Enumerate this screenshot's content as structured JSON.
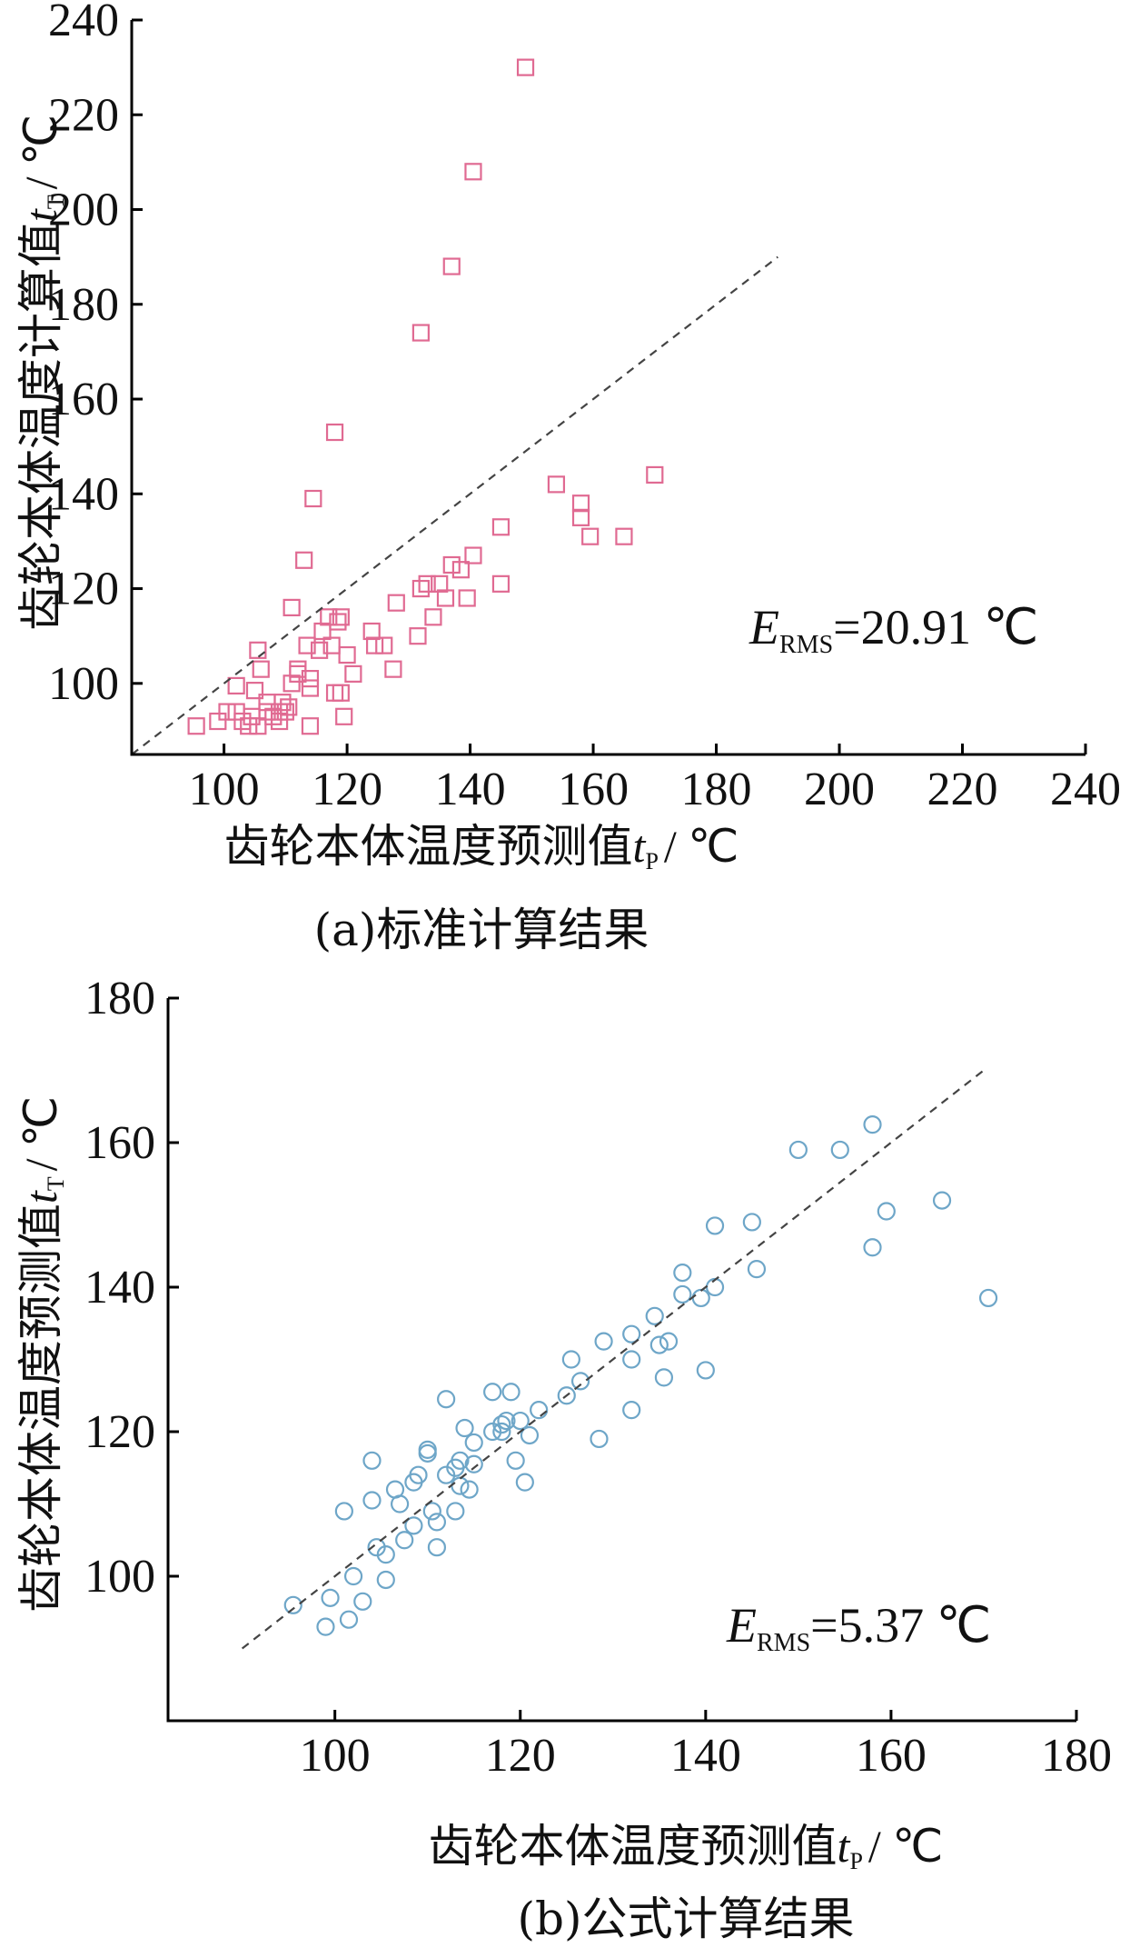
{
  "chart_data": [
    {
      "type": "scatter",
      "panel": "a",
      "caption": "(a)标准计算结果",
      "xlabel_main": "齿轮本体温度预测值",
      "xlabel_sym": "t",
      "xlabel_sub": "P",
      "xlabel_unit": "/ ℃",
      "ylabel_main": "齿轮本体温度计算值",
      "ylabel_sym": "t",
      "ylabel_sub": "T",
      "ylabel_unit": "/ ℃",
      "xlim": [
        85,
        240
      ],
      "ylim": [
        85,
        240
      ],
      "xticks": [
        "100",
        "120",
        "140",
        "160",
        "180",
        "200",
        "220",
        "240"
      ],
      "yticks": [
        "100",
        "120",
        "140",
        "160",
        "180",
        "200",
        "220",
        "240"
      ],
      "reference_line": [
        [
          85,
          85
        ],
        [
          190,
          190
        ]
      ],
      "annotation": {
        "sym": "E",
        "sub": "RMS",
        "value": "=20.91 ℃"
      },
      "marker": "square",
      "color": "#e06a92",
      "points": [
        [
          95.5,
          91
        ],
        [
          99,
          92
        ],
        [
          100.5,
          94
        ],
        [
          102,
          94
        ],
        [
          102,
          99.5
        ],
        [
          103,
          92
        ],
        [
          104,
          91
        ],
        [
          104.5,
          93
        ],
        [
          105,
          98.5
        ],
        [
          105.5,
          91
        ],
        [
          105.5,
          107
        ],
        [
          106,
          103
        ],
        [
          107,
          96
        ],
        [
          107,
          94
        ],
        [
          108,
          93
        ],
        [
          109,
          94
        ],
        [
          109,
          92
        ],
        [
          109.5,
          96
        ],
        [
          110,
          94
        ],
        [
          110.5,
          95
        ],
        [
          111,
          100
        ],
        [
          111,
          116
        ],
        [
          112,
          102
        ],
        [
          112,
          103
        ],
        [
          113,
          126
        ],
        [
          113.5,
          108
        ],
        [
          114,
          101
        ],
        [
          114,
          99
        ],
        [
          114,
          91
        ],
        [
          114.5,
          139
        ],
        [
          115.5,
          107
        ],
        [
          116,
          111
        ],
        [
          117,
          114
        ],
        [
          117.5,
          108
        ],
        [
          118,
          153
        ],
        [
          118.5,
          113
        ],
        [
          118,
          98
        ],
        [
          119,
          98
        ],
        [
          119,
          114
        ],
        [
          119.5,
          93
        ],
        [
          120,
          106
        ],
        [
          121,
          102
        ],
        [
          124,
          111
        ],
        [
          124.5,
          108
        ],
        [
          126,
          108
        ],
        [
          127.5,
          103
        ],
        [
          128,
          117
        ],
        [
          131.5,
          110
        ],
        [
          132,
          120
        ],
        [
          132,
          174
        ],
        [
          133,
          121
        ],
        [
          134,
          114
        ],
        [
          135,
          121
        ],
        [
          136,
          118
        ],
        [
          137,
          188
        ],
        [
          137,
          125
        ],
        [
          138.5,
          124
        ],
        [
          139.5,
          118
        ],
        [
          140.5,
          127
        ],
        [
          140.5,
          208
        ],
        [
          145,
          121
        ],
        [
          145,
          133
        ],
        [
          149,
          230
        ],
        [
          154,
          142
        ],
        [
          158,
          135
        ],
        [
          158,
          138
        ],
        [
          159.5,
          131
        ],
        [
          165,
          131
        ],
        [
          170,
          144
        ]
      ]
    },
    {
      "type": "scatter",
      "panel": "b",
      "caption": "(b)公式计算结果",
      "xlabel_main": "齿轮本体温度预测值",
      "xlabel_sym": "t",
      "xlabel_sub": "P",
      "xlabel_unit": "/ ℃",
      "ylabel_main": "齿轮本体温度预测值",
      "ylabel_sym": "t",
      "ylabel_sub": "T",
      "ylabel_unit": "/ ℃",
      "xlim": [
        82,
        180
      ],
      "ylim": [
        80,
        180
      ],
      "xticks": [
        "100",
        "120",
        "140",
        "160",
        "180"
      ],
      "yticks": [
        "100",
        "120",
        "140",
        "160",
        "180"
      ],
      "reference_line": [
        [
          90,
          90
        ],
        [
          170,
          170
        ]
      ],
      "annotation": {
        "sym": "E",
        "sub": "RMS",
        "value": "=5.37 ℃"
      },
      "marker": "circle",
      "color": "#6ea6c8",
      "points": [
        [
          95.5,
          96
        ],
        [
          99,
          93
        ],
        [
          99.5,
          97
        ],
        [
          101,
          109
        ],
        [
          101.5,
          94
        ],
        [
          102,
          100
        ],
        [
          103,
          96.5
        ],
        [
          104,
          110.5
        ],
        [
          104,
          116
        ],
        [
          104.5,
          104
        ],
        [
          105.5,
          99.5
        ],
        [
          105.5,
          103
        ],
        [
          106.5,
          112
        ],
        [
          107,
          110
        ],
        [
          107.5,
          105
        ],
        [
          108.5,
          107
        ],
        [
          108.5,
          113
        ],
        [
          109,
          114
        ],
        [
          110,
          117
        ],
        [
          110,
          117.5
        ],
        [
          110.5,
          109
        ],
        [
          111,
          104
        ],
        [
          111,
          107.5
        ],
        [
          112,
          114
        ],
        [
          112,
          124.5
        ],
        [
          113,
          115
        ],
        [
          113,
          109
        ],
        [
          113.5,
          112.5
        ],
        [
          113.5,
          116
        ],
        [
          114,
          120.5
        ],
        [
          114.5,
          112
        ],
        [
          115,
          115.5
        ],
        [
          115,
          118.5
        ],
        [
          117,
          120
        ],
        [
          117,
          125.5
        ],
        [
          118,
          121
        ],
        [
          118,
          120
        ],
        [
          118.5,
          121.5
        ],
        [
          119,
          125.5
        ],
        [
          119.5,
          116
        ],
        [
          120,
          121.5
        ],
        [
          120.5,
          113
        ],
        [
          121,
          119.5
        ],
        [
          122,
          123
        ],
        [
          125,
          125
        ],
        [
          125.5,
          130
        ],
        [
          126.5,
          127
        ],
        [
          128.5,
          119
        ],
        [
          129,
          132.5
        ],
        [
          132,
          133.5
        ],
        [
          132,
          130
        ],
        [
          132,
          123
        ],
        [
          134.5,
          136
        ],
        [
          135,
          132
        ],
        [
          135.5,
          127.5
        ],
        [
          136,
          132.5
        ],
        [
          137.5,
          139
        ],
        [
          137.5,
          142
        ],
        [
          139.5,
          138.5
        ],
        [
          140,
          128.5
        ],
        [
          141,
          140
        ],
        [
          141,
          148.5
        ],
        [
          145,
          149
        ],
        [
          145.5,
          142.5
        ],
        [
          150,
          159
        ],
        [
          154.5,
          159
        ],
        [
          158,
          145.5
        ],
        [
          158,
          162.5
        ],
        [
          159.5,
          150.5
        ],
        [
          165.5,
          152
        ],
        [
          170.5,
          138.5
        ]
      ]
    }
  ]
}
